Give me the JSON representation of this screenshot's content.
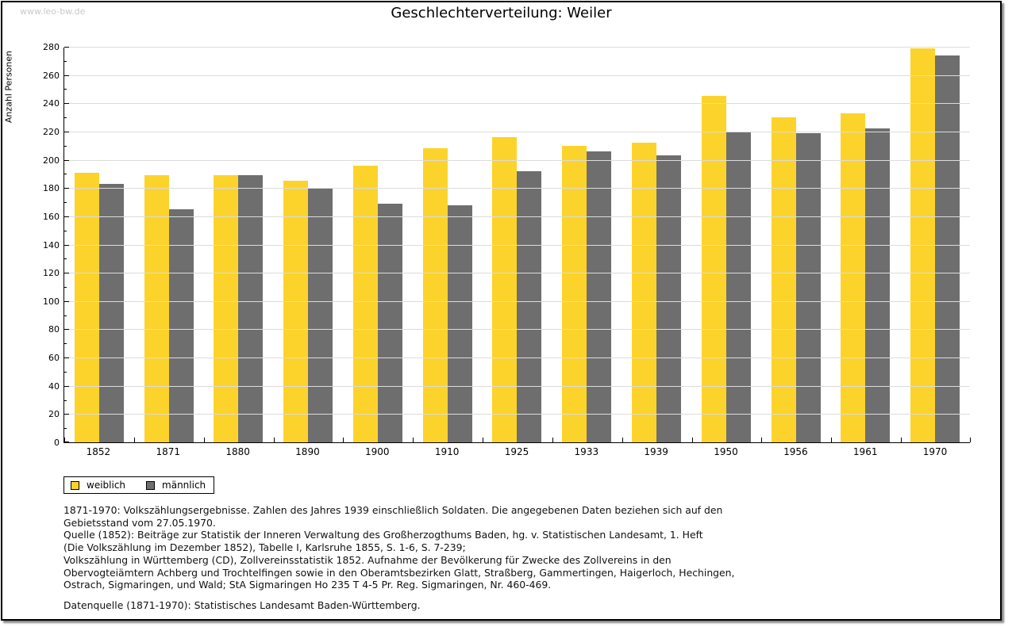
{
  "header": {
    "watermark": "www.leo-bw.de",
    "title": "Geschlechterverteilung: Weiler"
  },
  "chart_data": {
    "type": "bar",
    "title": "Geschlechterverteilung: Weiler",
    "xlabel": "",
    "ylabel": "Anzahl Personen",
    "ylim": [
      0,
      280
    ],
    "ytick_step": 20,
    "ytick_minor_step": 10,
    "grid": true,
    "legend_position": "bottom-left",
    "categories": [
      "1852",
      "1871",
      "1880",
      "1890",
      "1900",
      "1910",
      "1925",
      "1933",
      "1939",
      "1950",
      "1956",
      "1961",
      "1970"
    ],
    "series": [
      {
        "name": "weiblich",
        "color": "#fcd32b",
        "values": [
          191,
          189,
          189,
          185,
          196,
          208,
          216,
          210,
          212,
          245,
          230,
          233,
          279
        ]
      },
      {
        "name": "männlich",
        "color": "#6e6e6e",
        "values": [
          183,
          165,
          189,
          180,
          169,
          168,
          192,
          206,
          203,
          220,
          219,
          222,
          274
        ]
      }
    ]
  },
  "notes": {
    "lines": [
      "1871-1970: Volkszählungsergebnisse. Zahlen des Jahres 1939 einschließlich Soldaten. Die angegebenen Daten beziehen sich auf den",
      "Gebietsstand vom 27.05.1970.",
      "Quelle (1852): Beiträge zur Statistik der Inneren Verwaltung des Großherzogthums Baden, hg. v. Statistischen Landesamt, 1. Heft",
      "(Die Volkszählung im Dezember 1852), Tabelle I, Karlsruhe 1855, S. 1-6, S. 7-239;",
      "Volkszählung in Württemberg (CD), Zollvereinsstatistik 1852. Aufnahme der Bevölkerung für Zwecke des Zollvereins in den",
      "Obervogteiämtern Achberg und Trochtelfingen sowie in den Oberamtsbezirken Glatt, Straßberg, Gammertingen, Haigerloch, Hechingen,",
      "Ostrach, Sigmaringen, und Wald; StA Sigmaringen Ho 235 T 4-5 Pr. Reg. Sigmaringen, Nr. 460-469."
    ],
    "source": "Datenquelle (1871-1970): Statistisches Landesamt Baden-Württemberg."
  },
  "colors": {
    "female_bar": "#fcd32b",
    "male_bar": "#6e6e6e",
    "gridline": "#dcdcdc",
    "watermark": "#c9c9c9",
    "frame_border": "#000000"
  }
}
